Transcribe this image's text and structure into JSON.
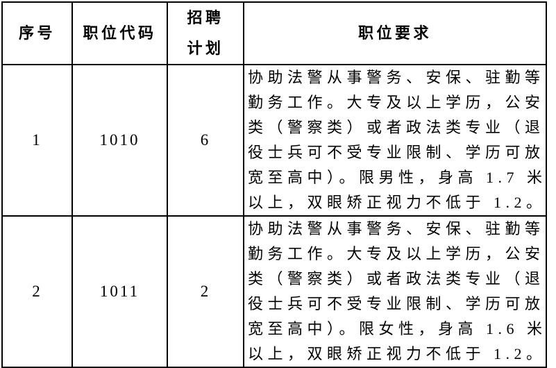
{
  "colors": {
    "background": "#ffffff",
    "border": "#000000",
    "text": "#000000"
  },
  "table": {
    "headers": {
      "no": "序号",
      "code": "职位代码",
      "plan": "招聘\n计划",
      "req": "职位要求"
    },
    "rows": [
      {
        "no": "1",
        "code": "1010",
        "plan": "6",
        "req": "协助法警从事警务、安保、驻勤等\n勤务工作。大专及以上学历，公安\n类（警察类）或者政法类专业（退\n役士兵可不受专业限制、学历可放\n宽至高中）。限男性，身高 1.7 米\n以上，双眼矫正视力不低于 1.2。"
      },
      {
        "no": "2",
        "code": "1011",
        "plan": "2",
        "req": "协助法警从事警务、安保、驻勤等\n勤务工作。大专及以上学历，公安\n类（警察类）或者政法类专业（退\n役士兵可不受专业限制、学历可放\n宽至高中）。限女性，身高 1.6 米\n以上，双眼矫正视力不低于 1.2。"
      }
    ]
  }
}
